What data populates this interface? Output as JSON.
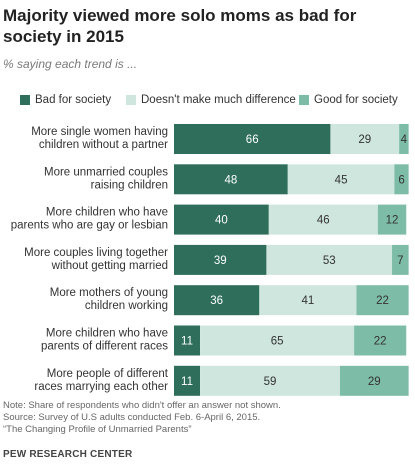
{
  "title": "Majority viewed more solo moms as bad for society in 2015",
  "subtitle": "% saying each trend is ...",
  "colors": {
    "bad": "#2e6e5b",
    "no_difference": "#cfe6df",
    "good": "#7dbca6",
    "label_dark": "#ffffff",
    "label_light": "#333333"
  },
  "chart_data": {
    "type": "bar",
    "orientation": "horizontal",
    "stacked": true,
    "title": "Majority viewed more solo moms as bad for society in 2015",
    "subtitle": "% saying each trend is ...",
    "legend_position": "top",
    "grid": false,
    "xlim": [
      0,
      100
    ],
    "categories": [
      [
        "More single women having",
        "children without a partner"
      ],
      [
        "More unmarried couples",
        "raising children"
      ],
      [
        "More children who have",
        "parents who are gay or lesbian"
      ],
      [
        "More couples living together",
        "without getting married"
      ],
      [
        "More mothers of young",
        "children working"
      ],
      [
        "More children who have",
        "parents of different races"
      ],
      [
        "More people of different",
        "races marrying each other"
      ]
    ],
    "series": [
      {
        "name": "Bad for society",
        "color": "#2e6e5b",
        "values": [
          66,
          48,
          40,
          39,
          36,
          11,
          11
        ]
      },
      {
        "name": "Doesn't make much difference",
        "color": "#cfe6df",
        "values": [
          29,
          45,
          46,
          53,
          41,
          65,
          59
        ]
      },
      {
        "name": "Good for society",
        "color": "#7dbca6",
        "values": [
          4,
          6,
          12,
          7,
          22,
          22,
          29
        ]
      }
    ]
  },
  "notes": [
    "Note: Share of respondents who didn't offer an answer not shown.",
    "Source: Survey of U.S adults conducted Feb. 6-April 6, 2015.",
    "“The Changing Profile of Unmarried Parents”"
  ],
  "brand": "PEW RESEARCH CENTER"
}
